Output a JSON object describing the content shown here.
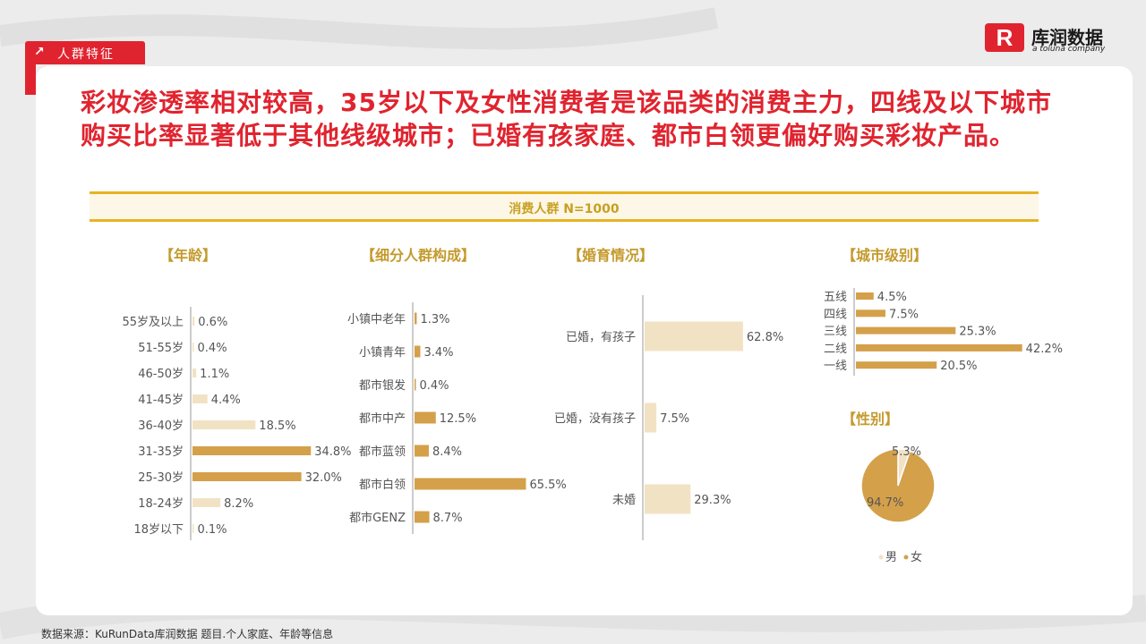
{
  "tag": {
    "label": "人群特征",
    "icon": "arrow-up-right-icon"
  },
  "logo": {
    "mark_text": "R",
    "cn": "库润数据",
    "en": "a toluna company"
  },
  "headline": "彩妆渗透率相对较高，35岁以下及女性消费者是该品类的消费主力，四线及以下城市购买比率显著低于其他线级城市；已婚有孩家庭、都市白领更偏好购买彩妆产品。",
  "band_title": "消费人群 N=1000",
  "sections": {
    "age": "【年龄】",
    "segment": "【细分人群构成】",
    "marital": "【婚育情况】",
    "city": "【城市级别】",
    "gender": "【性别】"
  },
  "colors": {
    "dark": "#d4a04a",
    "light": "#f2e2c4",
    "accent": "#e0242f",
    "gold": "#e6b422"
  },
  "chart_data": [
    {
      "type": "bar",
      "orientation": "horizontal",
      "name": "age",
      "categories": [
        "55岁及以上",
        "51-55岁",
        "46-50岁",
        "41-45岁",
        "36-40岁",
        "31-35岁",
        "25-30岁",
        "18-24岁",
        "18岁以下"
      ],
      "values": [
        0.6,
        0.4,
        1.1,
        4.4,
        18.5,
        34.8,
        32.0,
        8.2,
        0.1
      ],
      "labels": [
        "0.6%",
        "0.4%",
        "1.1%",
        "4.4%",
        "18.5%",
        "34.8%",
        "32.0%",
        "8.2%",
        "0.1%"
      ],
      "highlight": [
        false,
        false,
        false,
        false,
        false,
        true,
        true,
        false,
        false
      ]
    },
    {
      "type": "bar",
      "orientation": "horizontal",
      "name": "segment",
      "categories": [
        "小镇中老年",
        "小镇青年",
        "都市银发",
        "都市中产",
        "都市蓝领",
        "都市白领",
        "都市GENZ"
      ],
      "values": [
        1.3,
        3.4,
        0.4,
        12.5,
        8.4,
        65.5,
        8.7
      ],
      "labels": [
        "1.3%",
        "3.4%",
        "0.4%",
        "12.5%",
        "8.4%",
        "65.5%",
        "8.7%"
      ],
      "highlight": [
        true,
        true,
        true,
        true,
        true,
        true,
        true
      ]
    },
    {
      "type": "bar",
      "orientation": "horizontal",
      "name": "marital",
      "categories": [
        "已婚，有孩子",
        "已婚，没有孩子",
        "未婚"
      ],
      "values": [
        62.8,
        7.5,
        29.3
      ],
      "labels": [
        "62.8%",
        "7.5%",
        "29.3%"
      ],
      "highlight": [
        false,
        false,
        false
      ]
    },
    {
      "type": "bar",
      "orientation": "horizontal",
      "name": "city",
      "categories": [
        "五线",
        "四线",
        "三线",
        "二线",
        "一线"
      ],
      "values": [
        4.5,
        7.5,
        25.3,
        42.2,
        20.5
      ],
      "labels": [
        "4.5%",
        "7.5%",
        "25.3%",
        "42.2%",
        "20.5%"
      ],
      "highlight": [
        true,
        true,
        true,
        true,
        true
      ]
    },
    {
      "type": "pie",
      "name": "gender",
      "categories": [
        "男",
        "女"
      ],
      "values": [
        5.3,
        94.7
      ],
      "labels": [
        "5.3%",
        "94.7%"
      ],
      "legend": [
        "男",
        "女"
      ]
    }
  ],
  "source": "数据来源：KuRunData库润数据 题目.个人家庭、年龄等信息"
}
